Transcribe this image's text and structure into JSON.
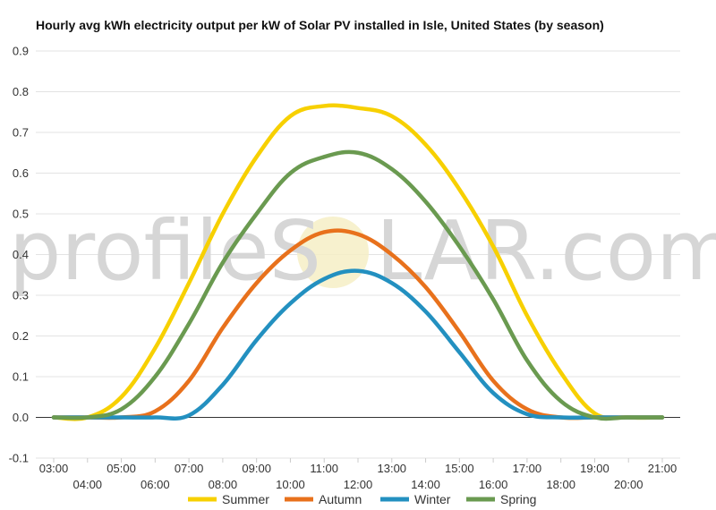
{
  "watermark": {
    "prefix": "profileS",
    "suffix": "LAR.com"
  },
  "chart_data": {
    "type": "line",
    "title": "Hourly avg kWh electricity output per kW of Solar PV installed in Isle, United States (by season)",
    "x": [
      3,
      4,
      5,
      6,
      7,
      8,
      9,
      10,
      11,
      12,
      13,
      14,
      15,
      16,
      17,
      18,
      19,
      20,
      21
    ],
    "x_tick_labels": [
      "03:00",
      "04:00",
      "05:00",
      "06:00",
      "07:00",
      "08:00",
      "09:00",
      "10:00",
      "11:00",
      "12:00",
      "13:00",
      "14:00",
      "15:00",
      "16:00",
      "17:00",
      "18:00",
      "19:00",
      "20:00",
      "21:00"
    ],
    "ylim": [
      -0.1,
      0.9
    ],
    "y_ticks": [
      "-0.1",
      "0.0",
      "0.1",
      "0.2",
      "0.3",
      "0.4",
      "0.5",
      "0.6",
      "0.7",
      "0.8",
      "0.9"
    ],
    "grid": true,
    "legend_position": "bottom",
    "series": [
      {
        "name": "Summer",
        "color": "#f7d000",
        "values": [
          0.0,
          0.0,
          0.05,
          0.17,
          0.33,
          0.5,
          0.64,
          0.74,
          0.765,
          0.76,
          0.74,
          0.67,
          0.56,
          0.42,
          0.25,
          0.11,
          0.01,
          0.0,
          0.0
        ]
      },
      {
        "name": "Autumn",
        "color": "#e8711c",
        "values": [
          0.0,
          0.0,
          0.0,
          0.015,
          0.09,
          0.22,
          0.33,
          0.41,
          0.455,
          0.45,
          0.4,
          0.32,
          0.21,
          0.09,
          0.02,
          0.0,
          0.0,
          0.0,
          0.0
        ]
      },
      {
        "name": "Winter",
        "color": "#2390c0",
        "values": [
          0.0,
          0.0,
          0.0,
          0.0,
          0.005,
          0.08,
          0.19,
          0.28,
          0.34,
          0.36,
          0.33,
          0.26,
          0.16,
          0.06,
          0.008,
          0.0,
          0.0,
          0.0,
          0.0
        ]
      },
      {
        "name": "Spring",
        "color": "#6a9a50",
        "values": [
          0.0,
          0.0,
          0.02,
          0.1,
          0.23,
          0.38,
          0.5,
          0.6,
          0.64,
          0.65,
          0.61,
          0.53,
          0.42,
          0.29,
          0.14,
          0.04,
          0.0,
          0.0,
          0.0
        ]
      }
    ]
  }
}
